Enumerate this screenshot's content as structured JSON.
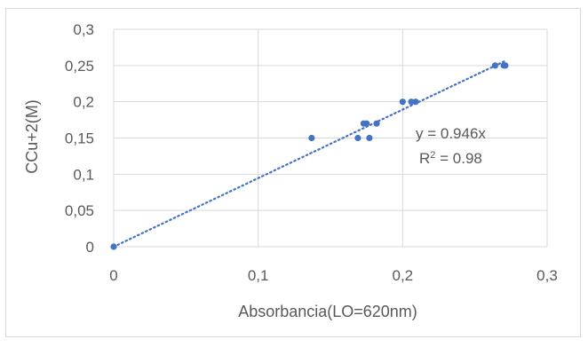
{
  "chart_data": {
    "type": "scatter",
    "title": "",
    "xlabel": "Absorbancia(LO=620nm)",
    "ylabel": "CCu+2(M)",
    "xlim": [
      0,
      0.3
    ],
    "ylim": [
      0,
      0.3
    ],
    "x_ticks": [
      "0",
      "0,1",
      "0,2",
      "0,3"
    ],
    "y_ticks": [
      "0",
      "0,05",
      "0,1",
      "0,15",
      "0,2",
      "0,25",
      "0,3"
    ],
    "grid": true,
    "marker_color": "#4472c4",
    "trendline": {
      "type": "linear",
      "slope": 0.946,
      "equation": "y = 0.946x",
      "r_squared_prefix": "R",
      "r_squared_sup": "2",
      "r_squared_suffix": " = 0.98",
      "color": "#4472c4"
    },
    "points": [
      {
        "x": 0.0,
        "y": 0.0
      },
      {
        "x": 0.137,
        "y": 0.15
      },
      {
        "x": 0.169,
        "y": 0.15
      },
      {
        "x": 0.177,
        "y": 0.15
      },
      {
        "x": 0.173,
        "y": 0.17
      },
      {
        "x": 0.175,
        "y": 0.17
      },
      {
        "x": 0.182,
        "y": 0.17
      },
      {
        "x": 0.2,
        "y": 0.2
      },
      {
        "x": 0.206,
        "y": 0.2
      },
      {
        "x": 0.209,
        "y": 0.2
      },
      {
        "x": 0.264,
        "y": 0.25
      },
      {
        "x": 0.27,
        "y": 0.25
      },
      {
        "x": 0.271,
        "y": 0.25
      }
    ]
  }
}
